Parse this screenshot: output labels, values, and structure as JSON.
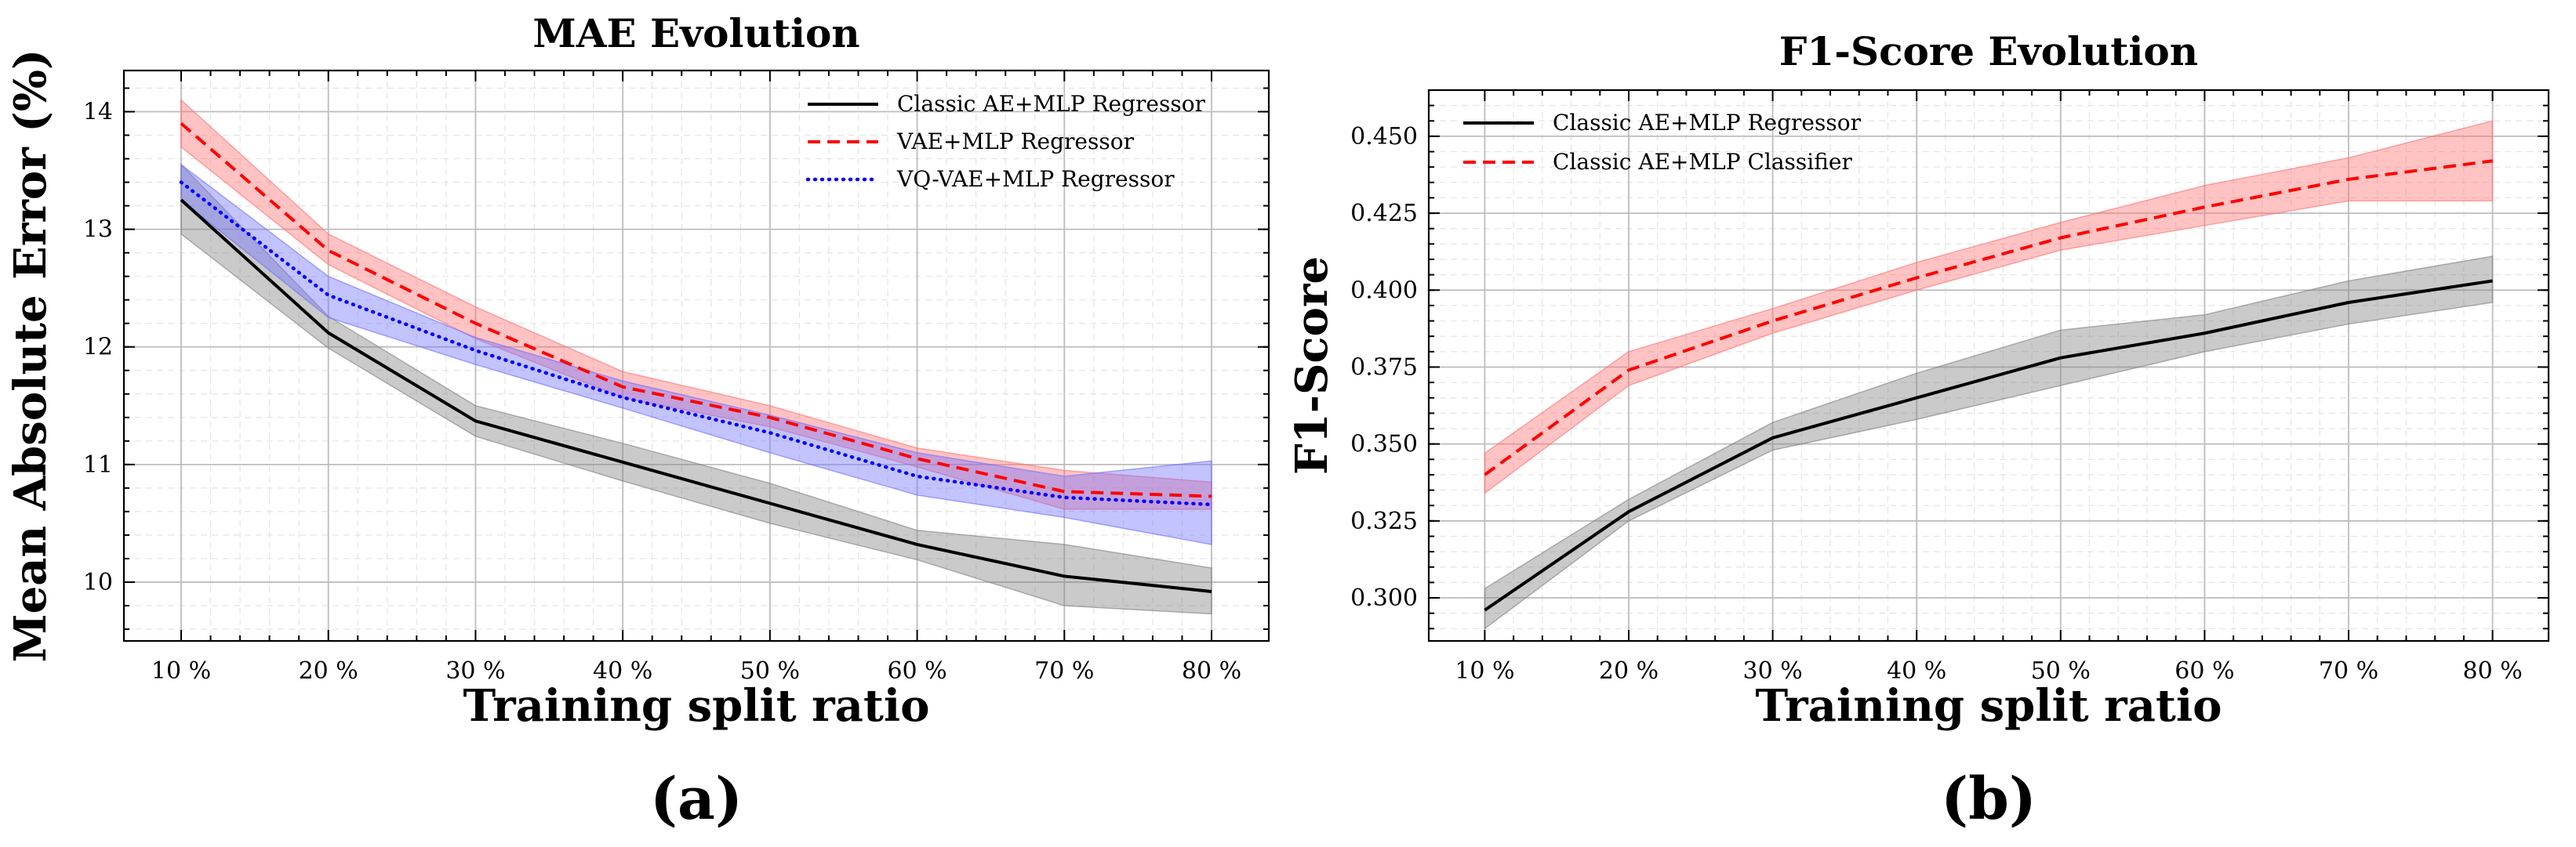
{
  "chart_data": [
    {
      "type": "line",
      "title": "MAE Evolution",
      "xlabel": "Training split ratio",
      "ylabel": "Mean Absolute Error (%)",
      "panel_label": "(a)",
      "categories": [
        "10 %",
        "20 %",
        "30 %",
        "40 %",
        "50 %",
        "60 %",
        "70 %",
        "80 %"
      ],
      "ylim": [
        9.5,
        14.35
      ],
      "yticks": [
        10,
        11,
        12,
        13,
        14
      ],
      "yticks_labels": [
        "10",
        "11",
        "12",
        "13",
        "14"
      ],
      "yminor_step": 0.2,
      "legend_position": "top-right",
      "series": [
        {
          "name": "Classic AE+MLP Regressor",
          "color": "#000000",
          "band_color": "#808080",
          "style": "solid",
          "values": [
            13.25,
            12.12,
            11.37,
            11.02,
            10.67,
            10.32,
            10.05,
            9.92
          ],
          "lower": [
            12.96,
            11.99,
            11.24,
            10.86,
            10.5,
            10.19,
            9.8,
            9.73
          ],
          "upper": [
            13.55,
            12.26,
            11.5,
            11.18,
            10.84,
            10.44,
            10.32,
            10.12
          ]
        },
        {
          "name": "VAE+MLP Regressor",
          "color": "#ff0000",
          "band_color": "#ff6f6f",
          "style": "dashed",
          "values": [
            13.9,
            12.82,
            12.2,
            11.66,
            11.4,
            11.05,
            10.77,
            10.73
          ],
          "lower": [
            13.7,
            12.7,
            12.07,
            11.57,
            11.32,
            10.98,
            10.62,
            10.62
          ],
          "upper": [
            14.1,
            12.96,
            12.34,
            11.79,
            11.5,
            11.14,
            10.95,
            10.85
          ]
        },
        {
          "name": "VQ-VAE+MLP Regressor",
          "color": "#0000ff",
          "band_color": "#6f6fff",
          "style": "dotted",
          "values": [
            13.4,
            12.44,
            11.97,
            11.57,
            11.27,
            10.9,
            10.72,
            10.66
          ],
          "lower": [
            13.25,
            12.25,
            11.85,
            11.48,
            11.1,
            10.74,
            10.55,
            10.32
          ],
          "upper": [
            13.55,
            12.6,
            12.08,
            11.71,
            11.42,
            11.1,
            10.9,
            11.03
          ]
        }
      ]
    },
    {
      "type": "line",
      "title": "F1-Score Evolution",
      "xlabel": "Training split ratio",
      "ylabel": "F1-Score",
      "panel_label": "(b)",
      "categories": [
        "10 %",
        "20 %",
        "30 %",
        "40 %",
        "50 %",
        "60 %",
        "70 %",
        "80 %"
      ],
      "ylim": [
        0.286,
        0.465
      ],
      "yticks": [
        0.3,
        0.325,
        0.35,
        0.375,
        0.4,
        0.425,
        0.45
      ],
      "yticks_labels": [
        "0.300",
        "0.325",
        "0.350",
        "0.375",
        "0.400",
        "0.425",
        "0.450"
      ],
      "yminor_step": 0.005,
      "legend_position": "top-left",
      "series": [
        {
          "name": "Classic AE+MLP Regressor",
          "color": "#000000",
          "band_color": "#808080",
          "style": "solid",
          "values": [
            0.296,
            0.328,
            0.352,
            0.365,
            0.378,
            0.386,
            0.396,
            0.403
          ],
          "lower": [
            0.29,
            0.325,
            0.348,
            0.358,
            0.369,
            0.38,
            0.389,
            0.396
          ],
          "upper": [
            0.303,
            0.332,
            0.357,
            0.373,
            0.387,
            0.392,
            0.403,
            0.411
          ]
        },
        {
          "name": "Classic AE+MLP Classifier",
          "color": "#ff0000",
          "band_color": "#ff6f6f",
          "style": "dashed",
          "values": [
            0.34,
            0.374,
            0.39,
            0.404,
            0.417,
            0.427,
            0.436,
            0.442
          ],
          "lower": [
            0.334,
            0.369,
            0.386,
            0.4,
            0.413,
            0.421,
            0.429,
            0.429
          ],
          "upper": [
            0.347,
            0.38,
            0.394,
            0.409,
            0.422,
            0.434,
            0.443,
            0.455
          ]
        }
      ]
    }
  ]
}
